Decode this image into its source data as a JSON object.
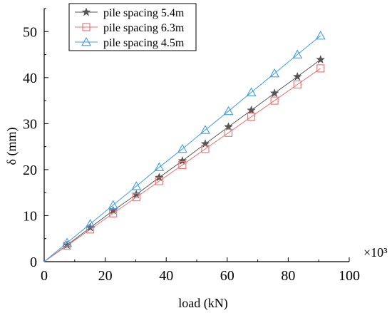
{
  "chart_data": {
    "type": "line",
    "title": "",
    "xlabel": "load (kN)",
    "ylabel": "δ (mm)",
    "x_multiplier_label": "×10³",
    "xlim": [
      0,
      100
    ],
    "ylim": [
      0,
      55
    ],
    "xticks": [
      0,
      20,
      40,
      60,
      80,
      100
    ],
    "yticks": [
      0,
      10,
      20,
      30,
      40,
      50
    ],
    "x_tick_labels": [
      "0",
      "20",
      "40",
      "60",
      "80",
      "100"
    ],
    "y_tick_labels": [
      "0",
      "10",
      "20",
      "30",
      "40",
      "50"
    ],
    "grid": false,
    "legend_position": "top-left",
    "series": [
      {
        "name": "pile spacing 5.4m",
        "color": "#555555",
        "marker": "star",
        "points": [
          [
            0,
            0
          ],
          [
            7.5,
            3.6
          ],
          [
            15.1,
            7.4
          ],
          [
            22.6,
            11.1
          ],
          [
            30.2,
            14.6
          ],
          [
            37.7,
            18.3
          ],
          [
            45.3,
            21.9
          ],
          [
            52.8,
            25.6
          ],
          [
            60.4,
            29.3
          ],
          [
            67.9,
            32.9
          ],
          [
            75.5,
            36.6
          ],
          [
            83.0,
            40.2
          ],
          [
            90.6,
            43.9
          ]
        ]
      },
      {
        "name": "pile spacing 6.3m",
        "color": "#e8706f",
        "marker": "square",
        "points": [
          [
            0,
            0
          ],
          [
            7.5,
            3.5
          ],
          [
            15.1,
            7.0
          ],
          [
            22.6,
            10.5
          ],
          [
            30.2,
            14.0
          ],
          [
            37.7,
            17.5
          ],
          [
            45.3,
            21.0
          ],
          [
            52.8,
            24.5
          ],
          [
            60.4,
            28.0
          ],
          [
            67.9,
            31.5
          ],
          [
            75.5,
            35.0
          ],
          [
            83.0,
            38.5
          ],
          [
            90.6,
            42.0
          ]
        ]
      },
      {
        "name": "pile spacing 4.5m",
        "color": "#3f9ee0",
        "marker": "triangle",
        "points": [
          [
            0,
            0
          ],
          [
            7.5,
            4.1
          ],
          [
            15.1,
            8.2
          ],
          [
            22.6,
            12.3
          ],
          [
            30.2,
            16.4
          ],
          [
            37.7,
            20.5
          ],
          [
            45.3,
            24.5
          ],
          [
            52.8,
            28.6
          ],
          [
            60.4,
            32.7
          ],
          [
            67.9,
            36.8
          ],
          [
            75.5,
            40.9
          ],
          [
            83.0,
            45.0
          ],
          [
            90.6,
            49.1
          ]
        ]
      }
    ]
  }
}
